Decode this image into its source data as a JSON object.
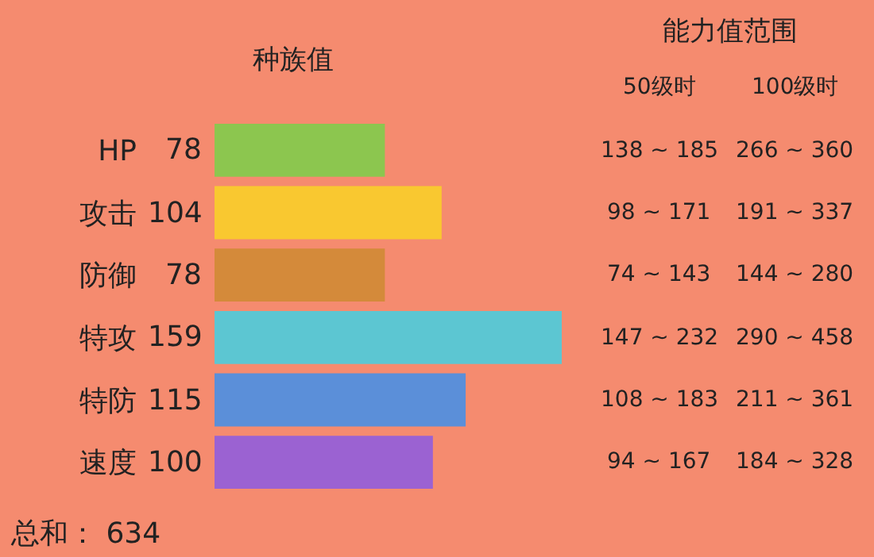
{
  "chart_data": {
    "type": "bar",
    "orientation": "horizontal",
    "categories": [
      "HP",
      "攻击",
      "防御",
      "特攻",
      "特防",
      "速度"
    ],
    "values": [
      78,
      104,
      78,
      159,
      115,
      100
    ],
    "colors": [
      "#8cc64f",
      "#f9c830",
      "#d48a3a",
      "#5cc6d2",
      "#5b8fd9",
      "#9b62d2"
    ],
    "data_labels": true,
    "tick_labels": "y",
    "annotations": [
      "种族值",
      "能力值范围",
      "50级时",
      "100级时",
      "138 ~ 185",
      "266 ~ 360",
      "98 ~ 171",
      "191 ~ 337",
      "74 ~ 143",
      "144 ~ 280",
      "147 ~ 232",
      "290 ~ 458",
      "108 ~ 183",
      "211 ~ 361",
      "94 ~ 167",
      "184 ~ 328",
      "总和： 634"
    ]
  }
}
